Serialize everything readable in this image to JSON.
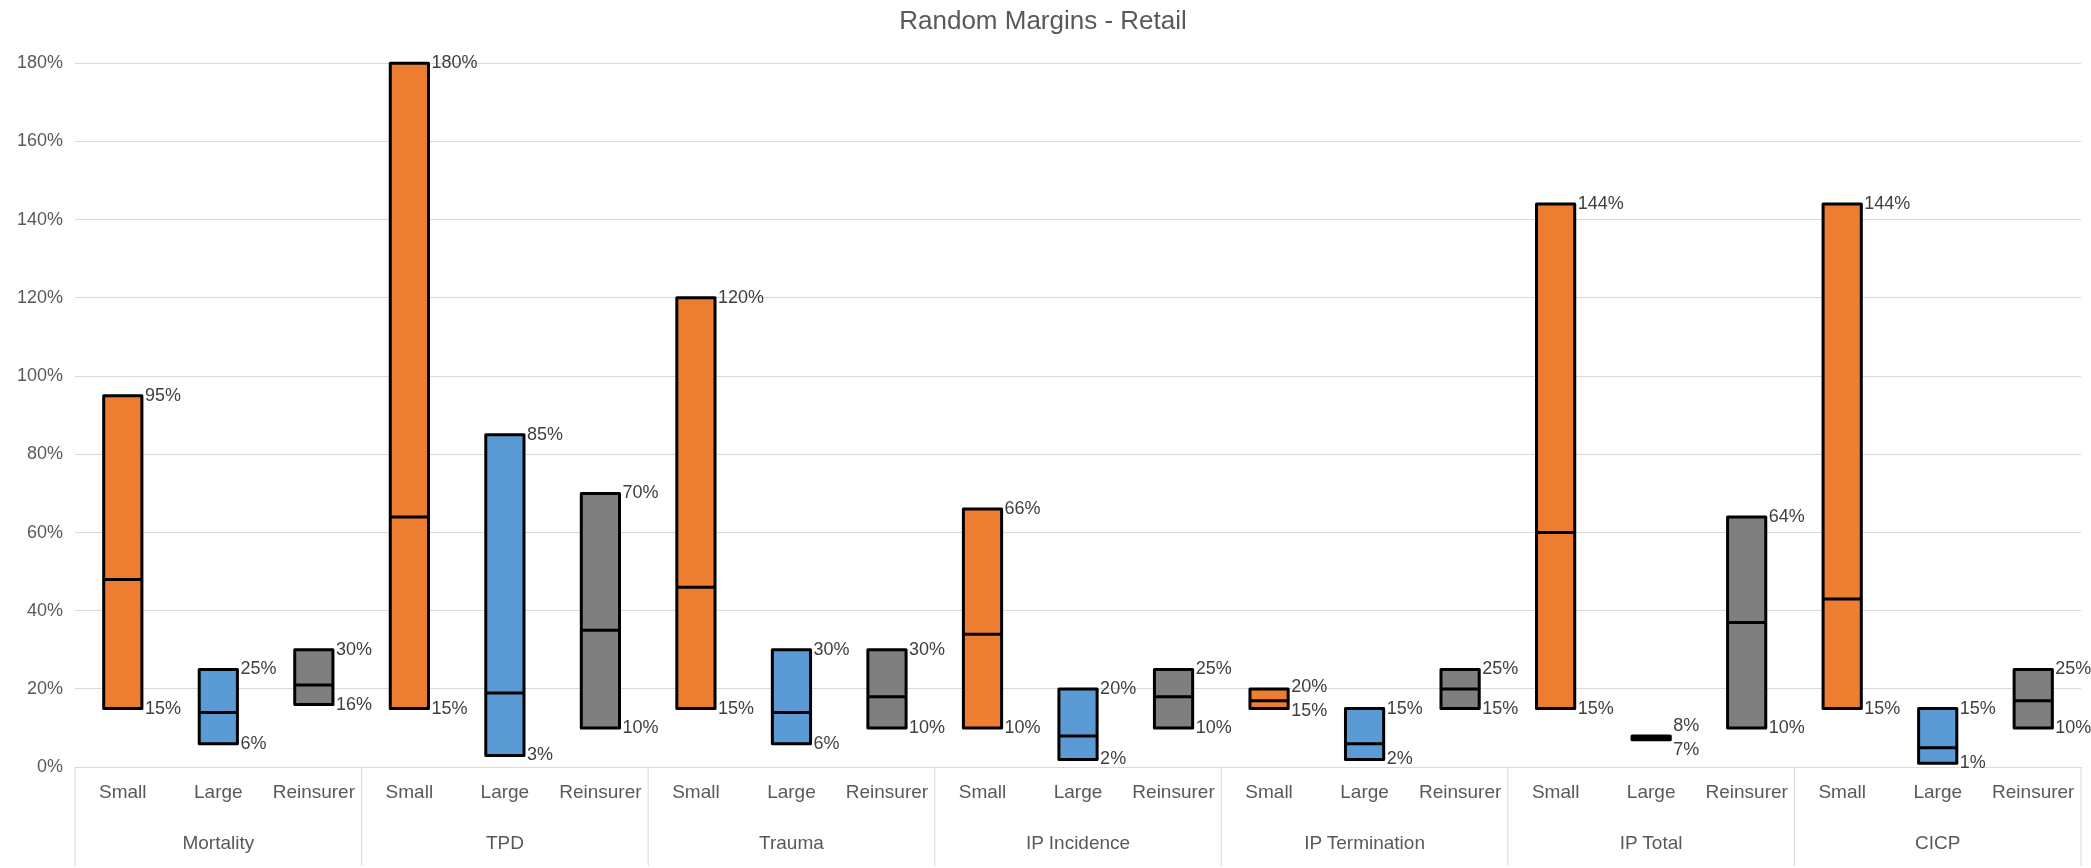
{
  "chart_data": {
    "type": "box",
    "title": "Random Margins - Retail",
    "categories": [
      "Small",
      "Large",
      "Reinsurer",
      "Small",
      "Large",
      "Reinsurer",
      "Small",
      "Large",
      "Reinsurer",
      "Small",
      "Large",
      "Reinsurer",
      "Small",
      "Large",
      "Reinsurer",
      "Small",
      "Large",
      "Reinsurer",
      "Small",
      "Large",
      "Reinsurer"
    ],
    "boxes": [
      {
        "low": 15,
        "q1": 15,
        "median": 48,
        "q3": 95,
        "high": 95
      },
      {
        "low": 6,
        "q1": 6,
        "median": 14,
        "q3": 25,
        "high": 25
      },
      {
        "low": 16,
        "q1": 16,
        "median": 21,
        "q3": 30,
        "high": 30
      },
      {
        "low": 15,
        "q1": 15,
        "median": 64,
        "q3": 180,
        "high": 180
      },
      {
        "low": 3,
        "q1": 3,
        "median": 19,
        "q3": 85,
        "high": 85
      },
      {
        "low": 10,
        "q1": 10,
        "median": 35,
        "q3": 70,
        "high": 70
      },
      {
        "low": 15,
        "q1": 15,
        "median": 46,
        "q3": 120,
        "high": 120
      },
      {
        "low": 6,
        "q1": 6,
        "median": 14,
        "q3": 30,
        "high": 30
      },
      {
        "low": 10,
        "q1": 10,
        "median": 18,
        "q3": 30,
        "high": 30
      },
      {
        "low": 10,
        "q1": 10,
        "median": 34,
        "q3": 66,
        "high": 66
      },
      {
        "low": 2,
        "q1": 2,
        "median": 8,
        "q3": 20,
        "high": 20
      },
      {
        "low": 10,
        "q1": 10,
        "median": 18,
        "q3": 25,
        "high": 25
      },
      {
        "low": 15,
        "q1": 15,
        "median": 17,
        "q3": 20,
        "high": 20
      },
      {
        "low": 2,
        "q1": 2,
        "median": 6,
        "q3": 15,
        "high": 15
      },
      {
        "low": 15,
        "q1": 15,
        "median": 20,
        "q3": 25,
        "high": 25
      },
      {
        "low": 15,
        "q1": 15,
        "median": 60,
        "q3": 144,
        "high": 144
      },
      {
        "low": 7,
        "q1": 7,
        "median": 7.5,
        "q3": 8,
        "high": 8
      },
      {
        "low": 10,
        "q1": 10,
        "median": 37,
        "q3": 64,
        "high": 64
      },
      {
        "low": 15,
        "q1": 15,
        "median": 43,
        "q3": 144,
        "high": 144
      },
      {
        "low": 1,
        "q1": 1,
        "median": 5,
        "q3": 15,
        "high": 15
      },
      {
        "low": 10,
        "q1": 10,
        "median": 17,
        "q3": 25,
        "high": 25
      }
    ],
    "colors": [
      "#ed7d31",
      "#5b9bd5",
      "#7f7f7f",
      "#ed7d31",
      "#5b9bd5",
      "#7f7f7f",
      "#ed7d31",
      "#5b9bd5",
      "#7f7f7f",
      "#ed7d31",
      "#5b9bd5",
      "#7f7f7f",
      "#ed7d31",
      "#5b9bd5",
      "#7f7f7f",
      "#ed7d31",
      "#5b9bd5",
      "#7f7f7f",
      "#ed7d31",
      "#5b9bd5",
      "#7f7f7f"
    ],
    "value_labels": [
      [
        "95%",
        "15%"
      ],
      [
        "25%",
        "6%"
      ],
      [
        "30%",
        "16%"
      ],
      [
        "180%",
        "15%"
      ],
      [
        "85%",
        "3%"
      ],
      [
        "70%",
        "10%"
      ],
      [
        "120%",
        "15%"
      ],
      [
        "30%",
        "6%"
      ],
      [
        "30%",
        "10%"
      ],
      [
        "66%",
        "10%"
      ],
      [
        "20%",
        "2%"
      ],
      [
        "25%",
        "10%"
      ],
      [
        "20%",
        "15%"
      ],
      [
        "15%",
        "2%"
      ],
      [
        "25%",
        "15%"
      ],
      [
        "144%",
        "15%"
      ],
      [
        "8%",
        "7%"
      ],
      [
        "64%",
        "10%"
      ],
      [
        "144%",
        "15%"
      ],
      [
        "15%",
        "1%"
      ],
      [
        "25%",
        "10%"
      ]
    ],
    "annotations": [
      "Mortality",
      "TPD",
      "Trauma",
      "IP Incidence",
      "IP Termination",
      "IP Total",
      "CICP"
    ],
    "ylim": [
      0,
      180
    ],
    "yticks": [
      {
        "value": 0,
        "label": "0%"
      },
      {
        "value": 20,
        "label": "20%"
      },
      {
        "value": 40,
        "label": "40%"
      },
      {
        "value": 60,
        "label": "60%"
      },
      {
        "value": 80,
        "label": "80%"
      },
      {
        "value": 100,
        "label": "100%"
      },
      {
        "value": 120,
        "label": "120%"
      },
      {
        "value": 140,
        "label": "140%"
      },
      {
        "value": 160,
        "label": "160%"
      },
      {
        "value": 180,
        "label": "180%"
      }
    ],
    "grid": "y"
  }
}
